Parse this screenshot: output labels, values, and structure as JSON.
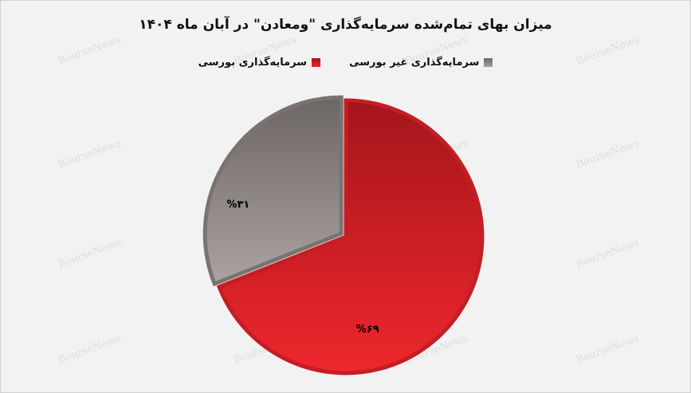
{
  "chart_data": {
    "type": "pie",
    "title": "میزان بهای تمام‌شده سرمایه‌گذاری \"ومعادن\" در آبان ماه ۱۴۰۴",
    "legend_position": "top",
    "slices": [
      {
        "name": "سرمایه‌گذاری بورسی",
        "value": 69,
        "label": "%۶۹",
        "color": "#d42027"
      },
      {
        "name": "سرمایه‌گذاری غیر بورسی",
        "value": 31,
        "label": "%۳۱",
        "color": "#8a8280",
        "exploded": true
      }
    ]
  },
  "watermark": "BourseNews"
}
